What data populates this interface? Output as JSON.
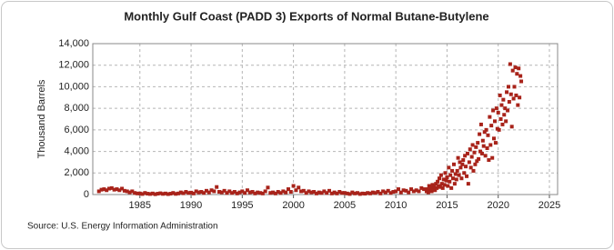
{
  "chart_data": {
    "type": "scatter",
    "title": "Monthly Gulf Coast (PADD 3) Exports of Normal Butane-Butylene",
    "y_label": "Thousand Barrels",
    "source": "Source: U.S. Energy Information Administration",
    "color": "#a8231a",
    "grid": true,
    "xlim": [
      1980.4,
      2025.8
    ],
    "xticks": [
      1985,
      1990,
      1995,
      2000,
      2005,
      2010,
      2015,
      2020,
      2025
    ],
    "ylim": [
      0,
      14000
    ],
    "yticks": [
      0,
      {
        "value": 2000,
        "label": "2,000"
      },
      {
        "value": 4000,
        "label": "4,000"
      },
      {
        "value": 6000,
        "label": "6,000"
      },
      {
        "value": 8000,
        "label": "8,000"
      },
      {
        "value": 10000,
        "label": "10,000"
      },
      {
        "value": 12000,
        "label": "12,000"
      },
      {
        "value": 14000,
        "label": "14,000"
      }
    ],
    "x": [
      1981,
      1981.25,
      1981.5,
      1981.75,
      1982,
      1982.25,
      1982.5,
      1982.75,
      1983,
      1983.25,
      1983.5,
      1983.75,
      1984,
      1984.25,
      1984.5,
      1984.75,
      1985,
      1985.25,
      1985.5,
      1985.75,
      1986,
      1986.25,
      1986.5,
      1986.75,
      1987,
      1987.25,
      1987.5,
      1987.75,
      1988,
      1988.25,
      1988.5,
      1988.75,
      1989,
      1989.25,
      1989.5,
      1989.75,
      1990,
      1990.25,
      1990.5,
      1990.75,
      1991,
      1991.25,
      1991.5,
      1991.75,
      1992,
      1992.25,
      1992.5,
      1992.75,
      1993,
      1993.25,
      1993.5,
      1993.75,
      1994,
      1994.25,
      1994.5,
      1994.75,
      1995,
      1995.25,
      1995.5,
      1995.75,
      1996,
      1996.25,
      1996.5,
      1996.75,
      1997,
      1997.25,
      1997.5,
      1997.75,
      1998,
      1998.25,
      1998.5,
      1998.75,
      1999,
      1999.25,
      1999.5,
      1999.75,
      2000,
      2000.25,
      2000.5,
      2000.75,
      2001,
      2001.25,
      2001.5,
      2001.75,
      2002,
      2002.25,
      2002.5,
      2002.75,
      2003,
      2003.25,
      2003.5,
      2003.75,
      2004,
      2004.25,
      2004.5,
      2004.75,
      2005,
      2005.25,
      2005.5,
      2005.75,
      2006,
      2006.25,
      2006.5,
      2006.75,
      2007,
      2007.25,
      2007.5,
      2007.75,
      2008,
      2008.25,
      2008.5,
      2008.75,
      2009,
      2009.25,
      2009.5,
      2009.75,
      2010,
      2010.25,
      2010.5,
      2010.75,
      2011,
      2011.25,
      2011.5,
      2011.75,
      2012,
      2012.25,
      2012.5,
      2012.75,
      2013,
      2013.08,
      2013.17,
      2013.25,
      2013.33,
      2013.42,
      2013.5,
      2013.58,
      2013.67,
      2013.75,
      2013.83,
      2013.92,
      2014,
      2014.08,
      2014.17,
      2014.25,
      2014.33,
      2014.42,
      2014.5,
      2014.58,
      2014.67,
      2014.75,
      2014.83,
      2014.92,
      2015,
      2015.08,
      2015.17,
      2015.25,
      2015.33,
      2015.42,
      2015.5,
      2015.58,
      2015.67,
      2015.75,
      2015.83,
      2015.92,
      2016,
      2016.08,
      2016.17,
      2016.25,
      2016.33,
      2016.42,
      2016.5,
      2016.58,
      2016.67,
      2016.75,
      2016.83,
      2016.92,
      2017,
      2017.08,
      2017.17,
      2017.25,
      2017.33,
      2017.42,
      2017.5,
      2017.58,
      2017.67,
      2017.75,
      2017.83,
      2017.92,
      2018,
      2018.08,
      2018.17,
      2018.25,
      2018.33,
      2018.42,
      2018.5,
      2018.58,
      2018.67,
      2018.75,
      2018.83,
      2018.92,
      2019,
      2019.08,
      2019.17,
      2019.25,
      2019.33,
      2019.42,
      2019.5,
      2019.58,
      2019.67,
      2019.75,
      2019.83,
      2019.92,
      2020,
      2020.08,
      2020.17,
      2020.25,
      2020.33,
      2020.42,
      2020.5,
      2020.58,
      2020.67,
      2020.75,
      2020.83,
      2020.92,
      2021,
      2021.08,
      2021.17,
      2021.25,
      2021.33,
      2021.42,
      2021.5,
      2021.58,
      2021.67,
      2021.75,
      2021.83,
      2021.92,
      2022,
      2022.08,
      2022.17,
      2022.25
    ],
    "values": [
      300,
      450,
      500,
      400,
      550,
      600,
      450,
      500,
      400,
      550,
      350,
      300,
      200,
      300,
      150,
      100,
      100,
      50,
      150,
      80,
      50,
      100,
      30,
      80,
      120,
      60,
      100,
      40,
      80,
      150,
      60,
      100,
      200,
      120,
      250,
      150,
      180,
      100,
      300,
      200,
      250,
      150,
      350,
      200,
      400,
      300,
      700,
      250,
      200,
      350,
      150,
      300,
      150,
      250,
      100,
      200,
      300,
      150,
      400,
      200,
      250,
      100,
      200,
      150,
      100,
      300,
      650,
      150,
      200,
      100,
      250,
      150,
      300,
      200,
      500,
      250,
      800,
      400,
      650,
      300,
      350,
      150,
      300,
      200,
      250,
      100,
      200,
      150,
      300,
      150,
      350,
      100,
      200,
      100,
      250,
      150,
      150,
      100,
      50,
      200,
      100,
      150,
      50,
      100,
      80,
      150,
      100,
      200,
      150,
      250,
      100,
      300,
      200,
      350,
      150,
      250,
      300,
      500,
      200,
      400,
      350,
      200,
      500,
      300,
      400,
      300,
      600,
      500,
      300,
      500,
      200,
      800,
      400,
      600,
      300,
      900,
      500,
      700,
      400,
      1000,
      600,
      1200,
      800,
      1500,
      700,
      1800,
      1000,
      600,
      1400,
      900,
      2000,
      1300,
      1600,
      800,
      2500,
      1200,
      1800,
      600,
      2200,
      1500,
      2800,
      1000,
      1900,
      1400,
      2200,
      3400,
      1800,
      3000,
      2500,
      1500,
      2800,
      3200,
      2000,
      3600,
      2600,
      1700,
      3800,
      1000,
      3000,
      4200,
      2500,
      3500,
      4600,
      2200,
      3900,
      2800,
      4400,
      3100,
      4800,
      3300,
      5600,
      4000,
      6500,
      3800,
      5000,
      4500,
      5800,
      3600,
      6000,
      4300,
      5500,
      3200,
      7200,
      4600,
      6400,
      3400,
      7800,
      5200,
      6800,
      4800,
      8000,
      6100,
      7600,
      6000,
      9200,
      7000,
      8300,
      6500,
      8800,
      7400,
      8000,
      6800,
      9500,
      7800,
      10000,
      8600,
      12100,
      9300,
      6300,
      11500,
      8900,
      10000,
      11800,
      9200,
      11200,
      8300,
      11700,
      9000,
      11000,
      10500
    ]
  }
}
